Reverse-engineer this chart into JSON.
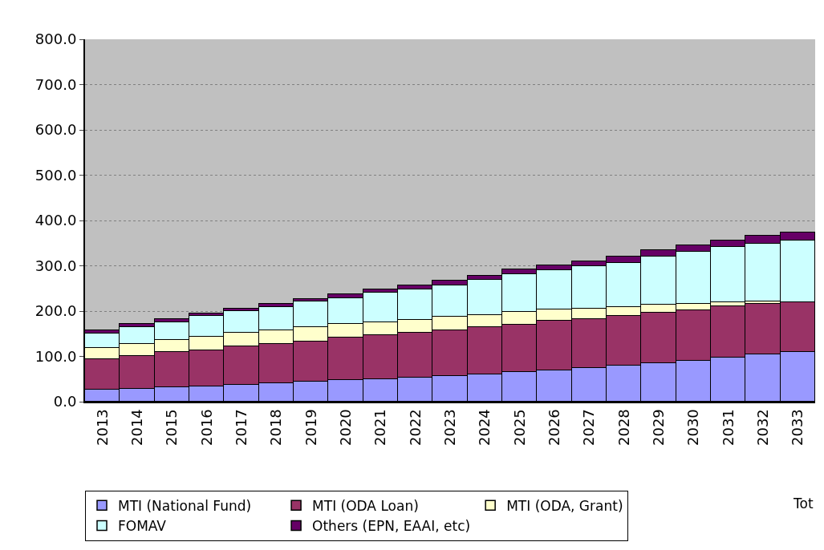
{
  "chart_data": {
    "type": "bar",
    "stacked": true,
    "categories": [
      "2013",
      "2014",
      "2015",
      "2016",
      "2017",
      "2018",
      "2019",
      "2020",
      "2021",
      "2022",
      "2023",
      "2024",
      "2025",
      "2026",
      "2027",
      "2028",
      "2029",
      "2030",
      "2031",
      "2032",
      "2033"
    ],
    "series": [
      {
        "name": "MTI (National Fund)",
        "color": "#9999ff",
        "values": [
          26,
          29,
          31,
          34,
          37,
          40,
          45,
          48,
          50,
          53,
          56,
          61,
          66,
          69,
          74,
          79,
          85,
          90,
          98,
          104,
          109
        ]
      },
      {
        "name": "MTI (ODA Loan)",
        "color": "#993366",
        "values": [
          67,
          72,
          79,
          80,
          85,
          88,
          88,
          94,
          97,
          99,
          101,
          104,
          104,
          110,
          109,
          110,
          112,
          112,
          112,
          112,
          110
        ]
      },
      {
        "name": "MTI (ODA, Grant)",
        "color": "#ffffcc",
        "values": [
          26,
          27,
          26,
          30,
          31,
          30,
          32,
          29,
          29,
          29,
          30,
          27,
          28,
          24,
          22,
          19,
          17,
          14,
          10,
          6,
          1
        ]
      },
      {
        "name": "FOMAV",
        "color": "#ccffff",
        "values": [
          32,
          37,
          40,
          45,
          47,
          50,
          56,
          58,
          64,
          67,
          69,
          77,
          83,
          87,
          94,
          99,
          106,
          115,
          122,
          127,
          135
        ]
      },
      {
        "name": "Others (EPN, EAAI, etc)",
        "color": "#660066",
        "values": [
          6,
          6,
          6,
          6,
          6,
          8,
          6,
          8,
          8,
          8,
          11,
          9,
          11,
          11,
          11,
          13,
          14,
          14,
          13,
          17,
          19
        ]
      }
    ],
    "ylim": [
      0,
      800
    ],
    "yticks": [
      {
        "value": 0,
        "label": "0.0"
      },
      {
        "value": 100,
        "label": "100.0"
      },
      {
        "value": 200,
        "label": "200.0"
      },
      {
        "value": 300,
        "label": "300.0"
      },
      {
        "value": 400,
        "label": "400.0"
      },
      {
        "value": 500,
        "label": "500.0"
      },
      {
        "value": 600,
        "label": "600.0"
      },
      {
        "value": 700,
        "label": "700.0"
      },
      {
        "value": 800,
        "label": "800.0"
      }
    ],
    "grid": "y",
    "legend": "bottom",
    "annotations": [
      "Tot"
    ]
  }
}
